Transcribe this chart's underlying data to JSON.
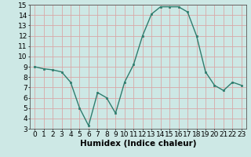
{
  "x": [
    0,
    1,
    2,
    3,
    4,
    5,
    6,
    7,
    8,
    9,
    10,
    11,
    12,
    13,
    14,
    15,
    16,
    17,
    18,
    19,
    20,
    21,
    22,
    23
  ],
  "y": [
    9,
    8.8,
    8.7,
    8.5,
    7.5,
    5.0,
    3.3,
    6.5,
    6.0,
    4.5,
    7.5,
    9.2,
    12.0,
    14.1,
    14.8,
    14.8,
    14.8,
    14.3,
    12.0,
    8.5,
    7.2,
    6.7,
    7.5,
    7.2
  ],
  "line_color": "#2e7d6e",
  "marker_color": "#2e7d6e",
  "bg_color": "#cde8e5",
  "grid_color": "#d8a8a8",
  "xlabel": "Humidex (Indice chaleur)",
  "xlim": [
    -0.5,
    23.5
  ],
  "ylim": [
    3,
    15
  ],
  "yticks": [
    3,
    4,
    5,
    6,
    7,
    8,
    9,
    10,
    11,
    12,
    13,
    14,
    15
  ],
  "xticks": [
    0,
    1,
    2,
    3,
    4,
    5,
    6,
    7,
    8,
    9,
    10,
    11,
    12,
    13,
    14,
    15,
    16,
    17,
    18,
    19,
    20,
    21,
    22,
    23
  ],
  "xlabel_fontsize": 7.5,
  "tick_fontsize": 6.5
}
